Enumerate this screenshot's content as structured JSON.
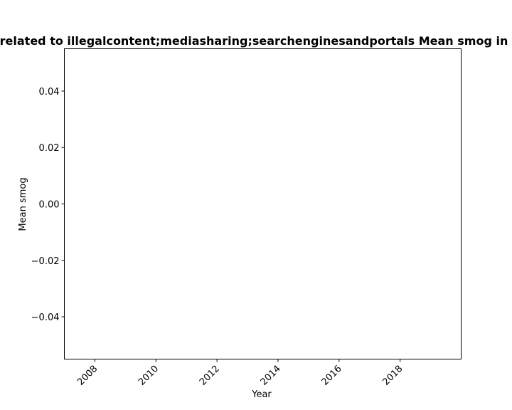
{
  "chart_data": {
    "type": "line",
    "title": "related to illegalcontent;mediasharing;searchenginesandportals Mean smog in",
    "xlabel": "Year",
    "ylabel": "Mean smog",
    "xlim": [
      2007.0,
      2020.0
    ],
    "ylim": [
      -0.055,
      0.055
    ],
    "xticks": [
      2008,
      2010,
      2012,
      2014,
      2016,
      2018
    ],
    "xtick_labels": [
      "2008",
      "2010",
      "2012",
      "2014",
      "2016",
      "2018"
    ],
    "yticks": [
      0.04,
      0.02,
      0.0,
      -0.02,
      -0.04
    ],
    "ytick_labels": [
      "0.04",
      "0.02",
      "0.00",
      "−0.02",
      "−0.04"
    ],
    "xtick_rotation_deg": 45,
    "grid": false,
    "legend": "none",
    "series": []
  }
}
